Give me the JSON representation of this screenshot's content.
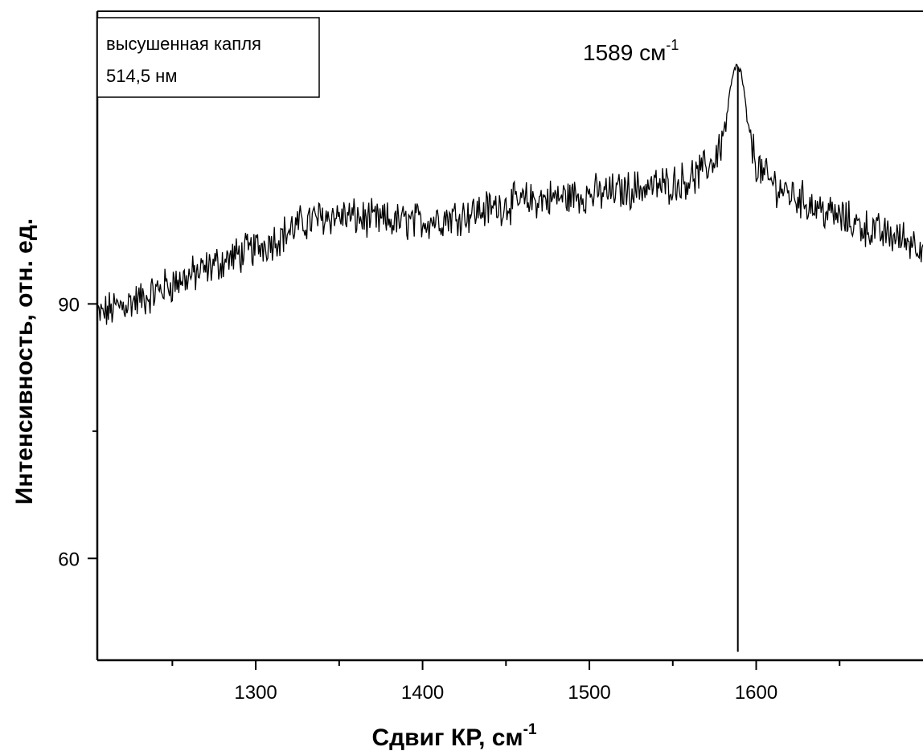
{
  "chart_data": {
    "type": "line",
    "xlabel": "Сдвиг КР, см",
    "xlabel_superscript": "-1",
    "ylabel": "Интенсивность, отн. ед.",
    "legend_lines": [
      "высушенная капля",
      "514,5 нм"
    ],
    "legend_position": "top-left",
    "annotation": {
      "text": "1589 см",
      "superscript": "-1",
      "x": 1589
    },
    "xlim": [
      1205,
      1700
    ],
    "ylim": [
      48,
      124.5
    ],
    "x_ticks": [
      1300,
      1400,
      1500,
      1600
    ],
    "x_tick_labels": [
      "1300",
      "1400",
      "1500",
      "1600"
    ],
    "x_minor_ticks": [
      1250,
      1350,
      1450,
      1550,
      1650
    ],
    "y_ticks": [
      60,
      90
    ],
    "y_tick_labels": [
      "60",
      "90"
    ],
    "y_minor_ticks": [
      75
    ],
    "grid": false,
    "series": [
      {
        "x": [
          1205,
          1215,
          1225,
          1235,
          1245,
          1255,
          1265,
          1275,
          1285,
          1295,
          1305,
          1315,
          1325,
          1335,
          1345,
          1355,
          1365,
          1375,
          1385,
          1395,
          1405,
          1415,
          1425,
          1435,
          1445,
          1455,
          1465,
          1475,
          1485,
          1495,
          1505,
          1515,
          1525,
          1535,
          1545,
          1555,
          1565,
          1575,
          1580,
          1583,
          1585,
          1587,
          1589,
          1591,
          1593,
          1595,
          1600,
          1605,
          1615,
          1625,
          1635,
          1645,
          1655,
          1665,
          1675,
          1685,
          1695,
          1700
        ],
        "y": [
          88.5,
          89.5,
          90.2,
          90.8,
          92.0,
          92.8,
          93.6,
          94.6,
          95.4,
          96.2,
          97.0,
          98.0,
          99.2,
          100.0,
          100.4,
          100.3,
          100.0,
          99.8,
          99.7,
          99.7,
          99.9,
          100.2,
          100.6,
          101.0,
          101.5,
          101.9,
          102.2,
          102.4,
          102.6,
          102.8,
          103.0,
          103.2,
          103.5,
          103.8,
          104.0,
          104.4,
          105.2,
          107.0,
          109.5,
          113.0,
          116.0,
          117.5,
          118.0,
          117.2,
          114.5,
          111.0,
          106.5,
          105.0,
          103.5,
          102.5,
          101.5,
          100.6,
          99.8,
          99.0,
          98.3,
          97.8,
          97.3,
          97.0
        ]
      }
    ],
    "drop_line": {
      "x": 1589,
      "y_from": 49,
      "y_to": 118
    }
  }
}
